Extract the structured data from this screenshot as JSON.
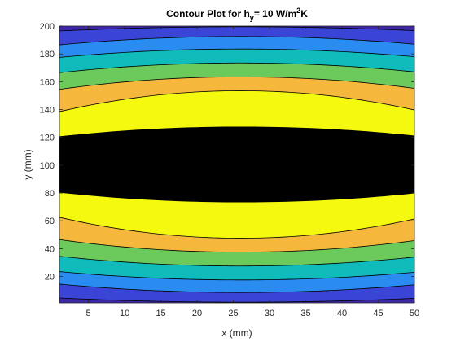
{
  "chart_data": {
    "type": "contour",
    "title": {
      "prefix": "Contour Plot for h",
      "subscript": "y",
      "middle": "= 10 W/m",
      "superscript": "2",
      "suffix": "K"
    },
    "xlabel": "x (mm)",
    "ylabel": "y (mm)",
    "xlim": [
      1,
      50
    ],
    "ylim": [
      1,
      200
    ],
    "xticks": [
      5,
      10,
      15,
      20,
      25,
      30,
      35,
      40,
      45,
      50
    ],
    "yticks": [
      20,
      40,
      60,
      80,
      100,
      120,
      140,
      160,
      180,
      200
    ],
    "x_tick_labels": [
      "5",
      "10",
      "15",
      "20",
      "25",
      "30",
      "35",
      "40",
      "45",
      "50"
    ],
    "y_tick_labels": [
      "20",
      "40",
      "60",
      "80",
      "100",
      "120",
      "140",
      "160",
      "180",
      "200"
    ],
    "field_center": {
      "x": 26,
      "y": 100.5
    },
    "contour_lines": [
      {
        "y_half_width_at_center": 99,
        "y_half_width_at_edges": 96
      },
      {
        "y_half_width_at_center": 92,
        "y_half_width_at_edges": 86
      },
      {
        "y_half_width_at_center": 83,
        "y_half_width_at_edges": 77
      },
      {
        "y_half_width_at_center": 73,
        "y_half_width_at_edges": 66
      },
      {
        "y_half_width_at_center": 63,
        "y_half_width_at_edges": 54
      },
      {
        "y_half_width_at_center": 53,
        "y_half_width_at_edges": 38
      },
      {
        "y_half_width_at_center": 27,
        "y_half_width_at_edges": 20
      }
    ],
    "level_colors": [
      "#3e26a8",
      "#3a45d8",
      "#2a8cf0",
      "#0fbbbb",
      "#6cc95c",
      "#f6b73d",
      "#f5f910"
    ],
    "grid": false
  }
}
